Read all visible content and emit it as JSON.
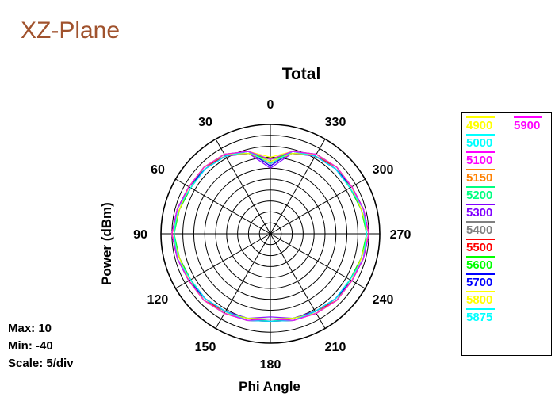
{
  "slide_title": "XZ-Plane",
  "stats": {
    "max": "Max: 10",
    "min": "Min: -40",
    "scale": "Scale: 5/div"
  },
  "chart_data": {
    "type": "polar",
    "title": "Total",
    "xlabel": "Phi Angle",
    "ylabel": "Power  (dBm)",
    "rlim": [
      -40,
      10
    ],
    "r_tick_step": 5,
    "angle_ticks": [
      "0",
      "330",
      "300",
      "270",
      "240",
      "210",
      "180",
      "150",
      "120",
      "90",
      "60",
      "30"
    ],
    "angle_direction": "clockwise-labels-decreasing",
    "grid": true,
    "legend_position": "right",
    "angles_deg": [
      0,
      15,
      30,
      45,
      60,
      75,
      90,
      105,
      120,
      135,
      150,
      165,
      180,
      195,
      210,
      225,
      240,
      255,
      270,
      285,
      300,
      315,
      330,
      345
    ],
    "series": [
      {
        "name": "4900",
        "color": "#ffff00",
        "values": [
          -5,
          -1,
          2,
          3,
          3,
          4,
          5,
          4,
          3,
          3,
          2,
          1,
          0,
          1,
          2,
          3,
          3,
          4,
          5,
          4,
          3,
          3,
          2,
          -1
        ]
      },
      {
        "name": "5000",
        "color": "#00ffff",
        "values": [
          -7,
          -2,
          1,
          2,
          3,
          4,
          5,
          4,
          3,
          2,
          1,
          0,
          -1,
          0,
          1,
          2,
          3,
          4,
          5,
          4,
          3,
          2,
          1,
          -2
        ]
      },
      {
        "name": "5100",
        "color": "#ff00ff",
        "values": [
          -9,
          -1,
          2,
          3,
          2,
          4,
          5,
          4,
          2,
          3,
          2,
          1,
          0,
          1,
          2,
          3,
          2,
          4,
          5,
          4,
          2,
          3,
          2,
          -1
        ]
      },
      {
        "name": "5150",
        "color": "#ff8000",
        "values": [
          -8,
          -2,
          1,
          2,
          3,
          3,
          5,
          3,
          3,
          2,
          1,
          1,
          -1,
          1,
          1,
          2,
          3,
          3,
          5,
          3,
          3,
          2,
          1,
          -2
        ]
      },
      {
        "name": "5200",
        "color": "#00ff80",
        "values": [
          -6,
          -1,
          2,
          3,
          3,
          4,
          4,
          4,
          3,
          3,
          2,
          0,
          0,
          0,
          2,
          3,
          3,
          4,
          4,
          4,
          3,
          3,
          2,
          -1
        ]
      },
      {
        "name": "5300",
        "color": "#8000ff",
        "values": [
          -10,
          -2,
          1,
          2,
          2,
          3,
          5,
          3,
          2,
          2,
          1,
          0,
          -2,
          0,
          1,
          2,
          2,
          3,
          5,
          3,
          2,
          2,
          1,
          -2
        ]
      },
      {
        "name": "5400",
        "color": "#808080",
        "values": [
          -7,
          -1,
          2,
          2,
          3,
          4,
          5,
          4,
          3,
          2,
          2,
          1,
          -1,
          1,
          2,
          2,
          3,
          4,
          5,
          4,
          3,
          2,
          2,
          -1
        ]
      },
      {
        "name": "5500",
        "color": "#ff0000",
        "values": [
          -8,
          -1,
          1,
          3,
          3,
          4,
          5,
          4,
          3,
          3,
          1,
          1,
          0,
          1,
          1,
          3,
          3,
          4,
          5,
          4,
          3,
          3,
          1,
          -1
        ]
      },
      {
        "name": "5600",
        "color": "#00ff00",
        "values": [
          -6,
          -2,
          2,
          3,
          2,
          3,
          4,
          3,
          2,
          3,
          2,
          0,
          -1,
          0,
          2,
          3,
          2,
          3,
          4,
          3,
          2,
          3,
          2,
          -2
        ]
      },
      {
        "name": "5700",
        "color": "#0000ff",
        "values": [
          -9,
          -1,
          1,
          2,
          3,
          4,
          5,
          4,
          3,
          2,
          1,
          1,
          0,
          1,
          1,
          2,
          3,
          4,
          5,
          4,
          3,
          2,
          1,
          -1
        ]
      },
      {
        "name": "5800",
        "color": "#ffff00",
        "values": [
          -7,
          -2,
          2,
          3,
          3,
          3,
          5,
          3,
          3,
          3,
          2,
          0,
          -1,
          0,
          2,
          3,
          3,
          3,
          5,
          3,
          3,
          3,
          2,
          -2
        ]
      },
      {
        "name": "5875",
        "color": "#00ffff",
        "values": [
          -8,
          -1,
          1,
          2,
          2,
          4,
          4,
          4,
          2,
          2,
          1,
          1,
          0,
          1,
          1,
          2,
          2,
          4,
          4,
          4,
          2,
          2,
          1,
          -1
        ]
      },
      {
        "name": "5900",
        "color": "#ff00ff",
        "values": [
          -6,
          -1,
          2,
          3,
          3,
          4,
          5,
          4,
          3,
          3,
          2,
          1,
          -1,
          1,
          2,
          3,
          3,
          4,
          5,
          4,
          3,
          3,
          2,
          -1
        ]
      }
    ]
  }
}
